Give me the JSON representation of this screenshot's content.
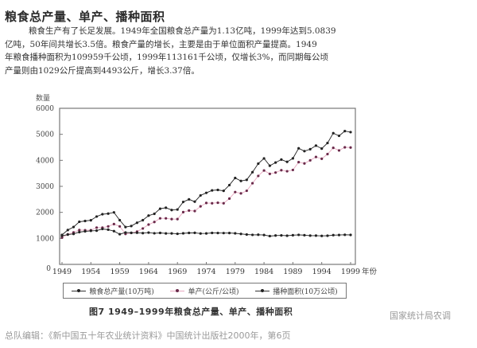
{
  "section_title": "粮食总产量、单产、播种面积",
  "paragraph": [
    "粮食生产有了长足发展。1949年全国粮食总产量为1.13亿吨，1999年达到5.0839",
    "亿吨，50年间共增长3.5倍。粮食产量的增长，主要是由于单位面积产量提高。1949",
    "年粮食播种面积为109959千公顷，1999年113161千公顷，仅增长3%，而同期每公顷",
    "产量则由1029公斤提高到4493公斤，增长3.37倍。"
  ],
  "figure_caption": "图7   1949–1999年粮食总产量、单产、播种面积",
  "watermark": "国家统计局农调",
  "source_note": "总队编辑：《新中国五十年农业统计资料》中国统计出版社2000年，第6页",
  "colors": {
    "total_output": "#222222",
    "yield_line": "#e8a8c0",
    "yield_marker": "#6a2a4a",
    "area": "#222222",
    "axis": "#777777"
  },
  "chart_data": {
    "type": "line",
    "title": "1949–1999年粮食总产量、单产、播种面积",
    "xlabel": "年份",
    "ylabel": "数量",
    "ylim": [
      0,
      6000
    ],
    "yticks": [
      0,
      1000,
      2000,
      3000,
      4000,
      5000,
      6000
    ],
    "xticks": [
      1949,
      1954,
      1959,
      1964,
      1969,
      1974,
      1979,
      1984,
      1989,
      1994,
      1999
    ],
    "grid": false,
    "legend_position": "bottom",
    "x": [
      1949,
      1950,
      1951,
      1952,
      1953,
      1954,
      1955,
      1956,
      1957,
      1958,
      1959,
      1960,
      1961,
      1962,
      1963,
      1964,
      1965,
      1966,
      1967,
      1968,
      1969,
      1970,
      1971,
      1972,
      1973,
      1974,
      1975,
      1976,
      1977,
      1978,
      1979,
      1980,
      1981,
      1982,
      1983,
      1984,
      1985,
      1986,
      1987,
      1988,
      1989,
      1990,
      1991,
      1992,
      1993,
      1994,
      1995,
      1996,
      1997,
      1998,
      1999
    ],
    "series": [
      {
        "name": "粮食总产量(10万吨)",
        "values": [
          1132,
          1321,
          1437,
          1639,
          1668,
          1695,
          1839,
          1928,
          1951,
          2000,
          1700,
          1435,
          1475,
          1600,
          1700,
          1875,
          1945,
          2140,
          2178,
          2090,
          2110,
          2400,
          2500,
          2410,
          2650,
          2750,
          2845,
          2863,
          2827,
          3048,
          3321,
          3206,
          3250,
          3545,
          3873,
          4073,
          3791,
          3915,
          4030,
          3941,
          4075,
          4462,
          4353,
          4427,
          4565,
          4451,
          4666,
          5045,
          4942,
          5123,
          5084
        ]
      },
      {
        "name": "单产(公斤/公顷)",
        "values": [
          1029,
          1155,
          1230,
          1322,
          1313,
          1314,
          1414,
          1412,
          1460,
          1549,
          1460,
          1170,
          1210,
          1260,
          1380,
          1530,
          1630,
          1770,
          1770,
          1740,
          1740,
          2010,
          2070,
          2050,
          2230,
          2360,
          2350,
          2370,
          2350,
          2530,
          2780,
          2730,
          2830,
          3120,
          3400,
          3610,
          3480,
          3530,
          3620,
          3580,
          3630,
          3930,
          3880,
          4000,
          4130,
          4060,
          4240,
          4480,
          4380,
          4500,
          4493
        ]
      },
      {
        "name": "播种面积(10万公顷)",
        "values": [
          1100,
          1144,
          1172,
          1240,
          1270,
          1290,
          1298,
          1363,
          1336,
          1279,
          1161,
          1224,
          1214,
          1216,
          1202,
          1222,
          1196,
          1210,
          1190,
          1190,
          1176,
          1193,
          1210,
          1212,
          1188,
          1190,
          1210,
          1207,
          1204,
          1206,
          1193,
          1172,
          1149,
          1135,
          1140,
          1129,
          1088,
          1109,
          1113,
          1101,
          1122,
          1135,
          1123,
          1106,
          1105,
          1095,
          1101,
          1125,
          1129,
          1138,
          1132
        ]
      }
    ]
  },
  "legend": {
    "items": [
      {
        "label": "粮食总产量(10万吨)"
      },
      {
        "label": "单产(公斤/公顷)"
      },
      {
        "label": "播种面积(10万公顷)"
      }
    ]
  }
}
